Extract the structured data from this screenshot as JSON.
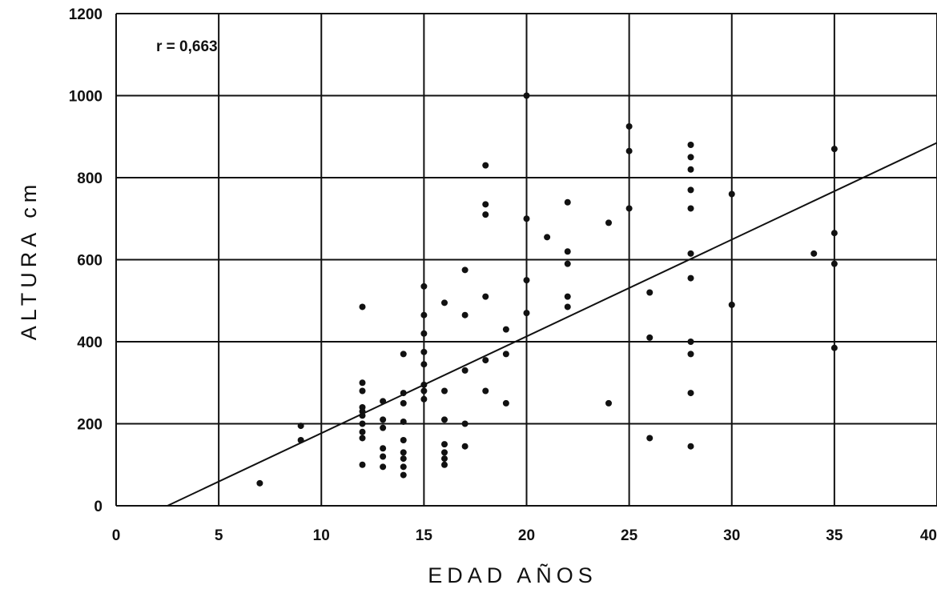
{
  "chart_data": {
    "type": "scatter",
    "title": "",
    "xlabel": "EDAD   AÑOS",
    "ylabel": "ALTURA cm",
    "xlim": [
      0,
      40
    ],
    "ylim": [
      0,
      1200
    ],
    "x_ticks": [
      "0",
      "5",
      "10",
      "15",
      "20",
      "25",
      "30",
      "35",
      "40"
    ],
    "y_ticks": [
      "0",
      "200",
      "400",
      "600",
      "800",
      "1000",
      "1200"
    ],
    "grid": true,
    "annotation": "r = 0,663",
    "regression_line": {
      "x": [
        2.5,
        40
      ],
      "y": [
        0,
        885
      ]
    },
    "points": [
      [
        7,
        55
      ],
      [
        9,
        195
      ],
      [
        9,
        160
      ],
      [
        12,
        485
      ],
      [
        12,
        300
      ],
      [
        12,
        280
      ],
      [
        12,
        240
      ],
      [
        12,
        230
      ],
      [
        12,
        220
      ],
      [
        12,
        200
      ],
      [
        12,
        180
      ],
      [
        12,
        165
      ],
      [
        12,
        100
      ],
      [
        13,
        255
      ],
      [
        13,
        210
      ],
      [
        13,
        190
      ],
      [
        13,
        140
      ],
      [
        13,
        120
      ],
      [
        13,
        95
      ],
      [
        14,
        370
      ],
      [
        14,
        275
      ],
      [
        14,
        250
      ],
      [
        14,
        205
      ],
      [
        14,
        160
      ],
      [
        14,
        130
      ],
      [
        14,
        115
      ],
      [
        14,
        95
      ],
      [
        14,
        75
      ],
      [
        15,
        535
      ],
      [
        15,
        465
      ],
      [
        15,
        420
      ],
      [
        15,
        375
      ],
      [
        15,
        345
      ],
      [
        15,
        295
      ],
      [
        15,
        280
      ],
      [
        15,
        260
      ],
      [
        16,
        495
      ],
      [
        16,
        280
      ],
      [
        16,
        210
      ],
      [
        16,
        150
      ],
      [
        16,
        130
      ],
      [
        16,
        115
      ],
      [
        16,
        100
      ],
      [
        17,
        575
      ],
      [
        17,
        465
      ],
      [
        17,
        330
      ],
      [
        17,
        200
      ],
      [
        17,
        145
      ],
      [
        18,
        830
      ],
      [
        18,
        735
      ],
      [
        18,
        710
      ],
      [
        18,
        510
      ],
      [
        18,
        355
      ],
      [
        18,
        280
      ],
      [
        19,
        430
      ],
      [
        19,
        370
      ],
      [
        19,
        250
      ],
      [
        20,
        1000
      ],
      [
        20,
        700
      ],
      [
        20,
        550
      ],
      [
        20,
        470
      ],
      [
        21,
        655
      ],
      [
        22,
        740
      ],
      [
        22,
        620
      ],
      [
        22,
        590
      ],
      [
        22,
        510
      ],
      [
        22,
        485
      ],
      [
        24,
        690
      ],
      [
        24,
        250
      ],
      [
        25,
        925
      ],
      [
        25,
        865
      ],
      [
        25,
        725
      ],
      [
        26,
        520
      ],
      [
        26,
        410
      ],
      [
        26,
        165
      ],
      [
        28,
        880
      ],
      [
        28,
        850
      ],
      [
        28,
        820
      ],
      [
        28,
        770
      ],
      [
        28,
        725
      ],
      [
        28,
        615
      ],
      [
        28,
        555
      ],
      [
        28,
        400
      ],
      [
        28,
        370
      ],
      [
        28,
        275
      ],
      [
        28,
        145
      ],
      [
        30,
        760
      ],
      [
        30,
        490
      ],
      [
        34,
        615
      ],
      [
        35,
        870
      ],
      [
        35,
        665
      ],
      [
        35,
        590
      ],
      [
        35,
        385
      ]
    ]
  }
}
